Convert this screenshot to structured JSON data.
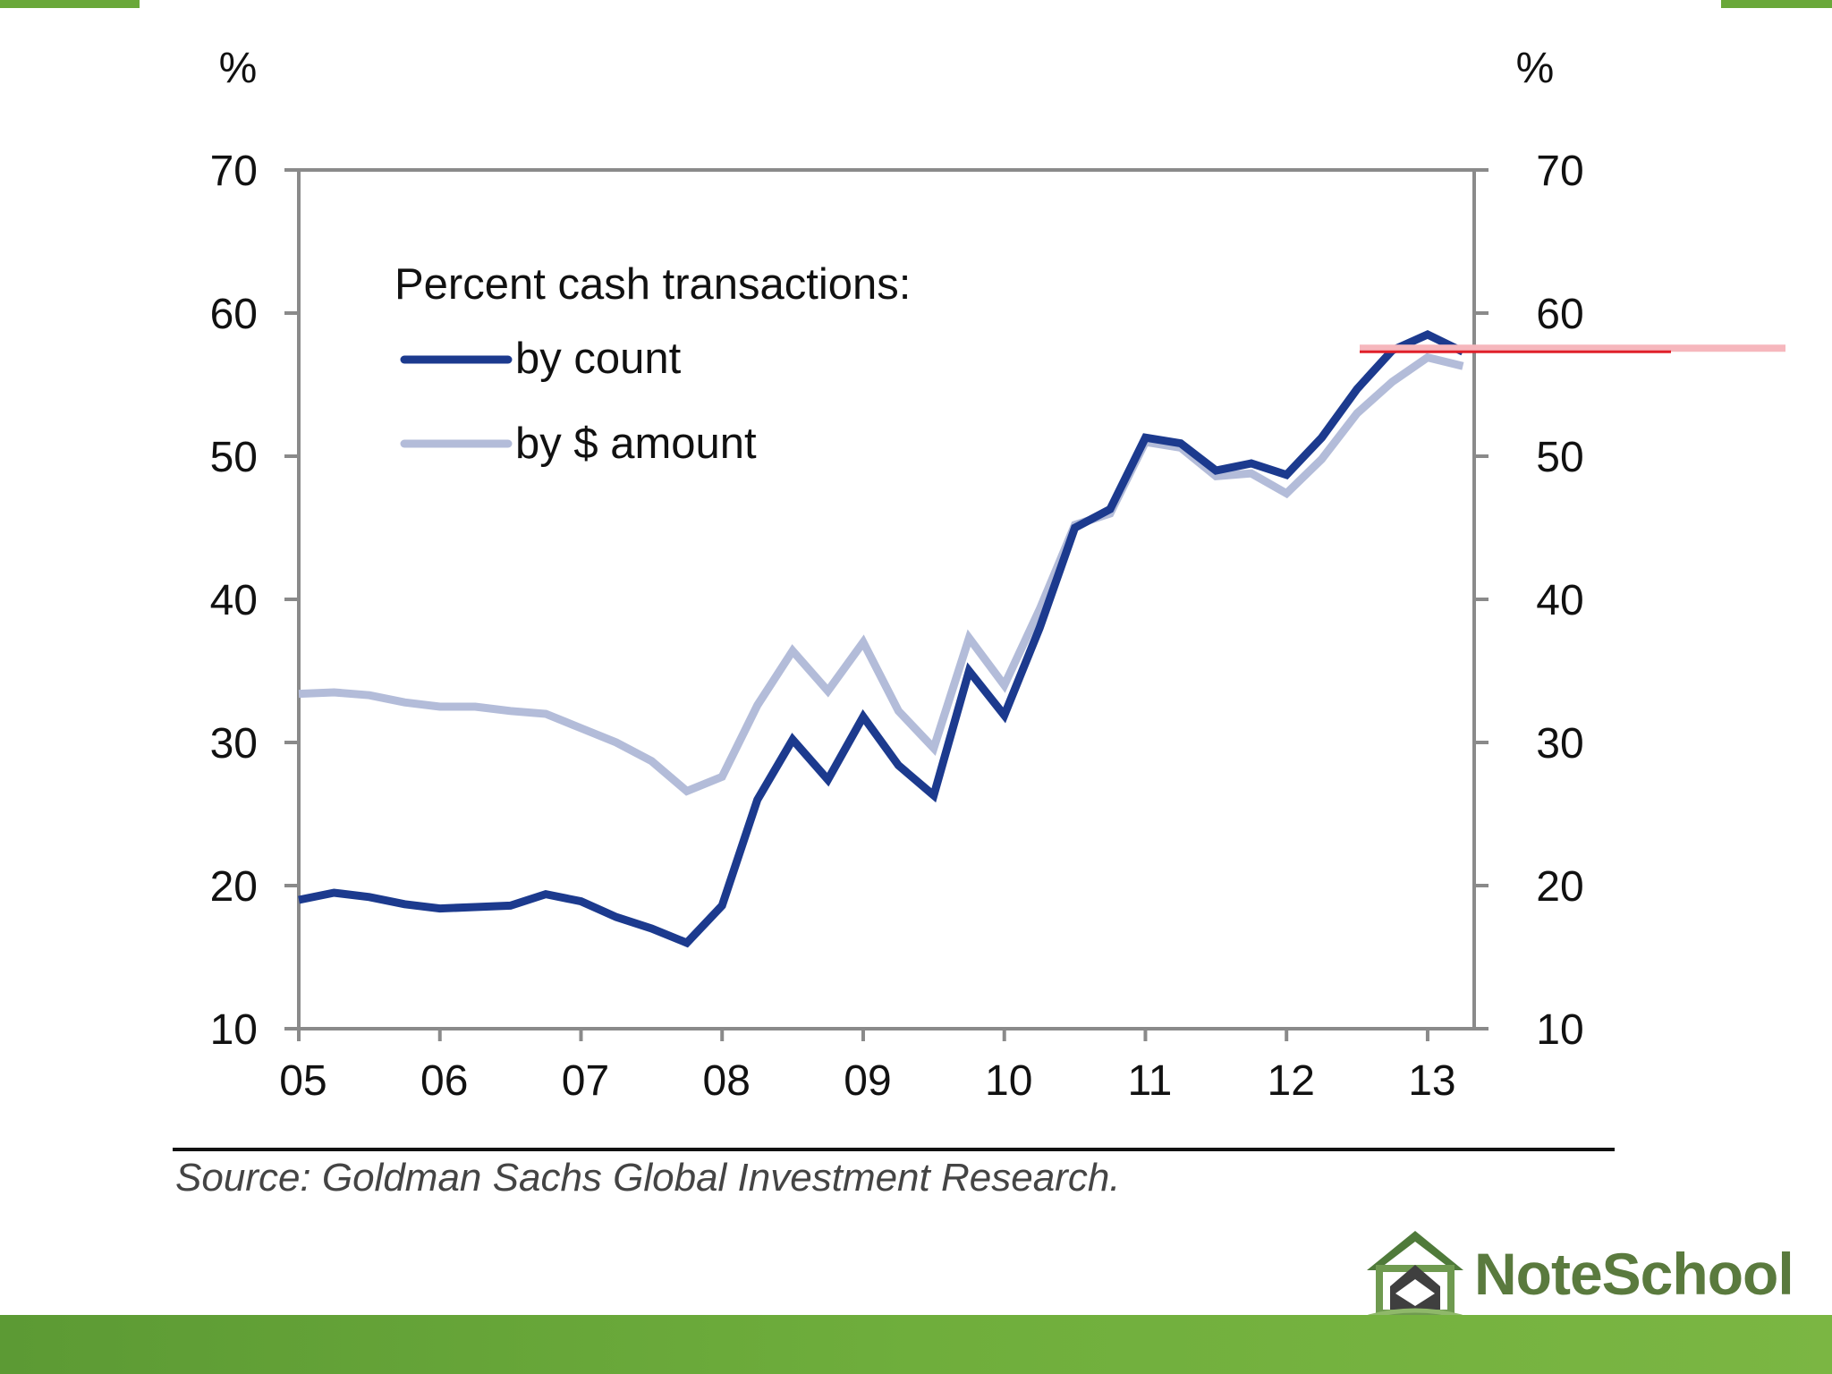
{
  "chart_data": {
    "type": "line",
    "left_axis_unit": "%",
    "right_axis_unit": "%",
    "ylim": [
      10,
      70
    ],
    "y_ticks": [
      "70",
      "60",
      "50",
      "40",
      "30",
      "20",
      "10"
    ],
    "x_tick_labels": [
      "05",
      "06",
      "07",
      "08",
      "09",
      "10",
      "11",
      "12",
      "13"
    ],
    "x_range": [
      2005.0,
      2013.33
    ],
    "legend_title": "Percent cash transactions:",
    "series": [
      {
        "name": "by count",
        "color": "#1c3a8e",
        "x": [
          2005.0,
          2005.25,
          2005.5,
          2005.75,
          2006.0,
          2006.25,
          2006.5,
          2006.75,
          2007.0,
          2007.25,
          2007.5,
          2007.75,
          2008.0,
          2008.25,
          2008.5,
          2008.75,
          2009.0,
          2009.25,
          2009.5,
          2009.75,
          2010.0,
          2010.25,
          2010.5,
          2010.75,
          2011.0,
          2011.25,
          2011.5,
          2011.75,
          2012.0,
          2012.25,
          2012.5,
          2012.75,
          2013.0,
          2013.25
        ],
        "values": [
          19.0,
          19.5,
          19.2,
          18.7,
          18.4,
          18.5,
          18.6,
          19.4,
          18.9,
          17.8,
          17.0,
          16.0,
          18.6,
          26.0,
          30.2,
          27.4,
          31.8,
          28.4,
          26.3,
          35.0,
          31.9,
          38.0,
          45.0,
          46.3,
          51.3,
          50.9,
          49.0,
          49.5,
          48.7,
          51.3,
          54.7,
          57.4,
          58.5,
          57.3
        ]
      },
      {
        "name": "by $ amount",
        "color": "#b3bcd9",
        "x": [
          2005.0,
          2005.25,
          2005.5,
          2005.75,
          2006.0,
          2006.25,
          2006.5,
          2006.75,
          2007.0,
          2007.25,
          2007.5,
          2007.75,
          2008.0,
          2008.25,
          2008.5,
          2008.75,
          2009.0,
          2009.25,
          2009.5,
          2009.75,
          2010.0,
          2010.25,
          2010.5,
          2010.75,
          2011.0,
          2011.25,
          2011.5,
          2011.75,
          2012.0,
          2012.25,
          2012.5,
          2012.75,
          2013.0,
          2013.25
        ],
        "values": [
          33.4,
          33.5,
          33.3,
          32.8,
          32.5,
          32.5,
          32.2,
          32.0,
          31.0,
          30.0,
          28.7,
          26.6,
          27.6,
          32.6,
          36.4,
          33.6,
          37.0,
          32.2,
          29.6,
          37.3,
          34.0,
          39.3,
          45.2,
          46.0,
          51.0,
          50.6,
          48.6,
          48.8,
          47.4,
          49.8,
          53.0,
          55.2,
          56.9,
          56.3
        ]
      }
    ],
    "reference_line_value": 57.3,
    "reference_line_color": "#e0202a"
  },
  "footer": {
    "source": "Source: Goldman Sachs Global Investment Research.",
    "logo_text": "NoteSchool"
  },
  "colors": {
    "axis": "#8a8a8a",
    "brand_green": "#6aa83a",
    "logo_green": "#5a7a3e"
  }
}
